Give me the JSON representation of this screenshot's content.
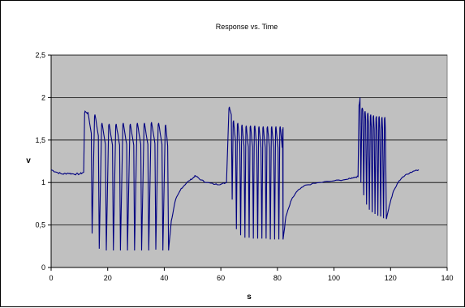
{
  "chart_data": {
    "type": "line",
    "title": "Response vs. Time",
    "xlabel": "s",
    "ylabel": "v",
    "xlim": [
      0,
      140
    ],
    "ylim": [
      0,
      2.5
    ],
    "x_ticks": [
      "0",
      "20",
      "40",
      "60",
      "80",
      "100",
      "120",
      "140"
    ],
    "y_ticks": [
      "0",
      "0,5",
      "1",
      "1,5",
      "2",
      "2,5"
    ],
    "grid": "horizontal",
    "plot_background": "#c0c0c0",
    "line_color": "#000080",
    "legend": "none",
    "series": [
      {
        "baseline": [
          [
            0,
            1.15
          ],
          [
            2,
            1.12
          ],
          [
            4,
            1.1
          ],
          [
            6,
            1.11
          ],
          [
            8,
            1.1
          ],
          [
            10,
            1.1
          ],
          [
            11.5,
            1.12
          ]
        ],
        "bursts": [
          {
            "peaks": [
              [
                12,
                1.84
              ],
              [
                13,
                1.83
              ],
              [
                15.5,
                1.8
              ],
              [
                18,
                1.7
              ],
              [
                20.5,
                1.69
              ],
              [
                23,
                1.69
              ],
              [
                25.5,
                1.7
              ],
              [
                28,
                1.69
              ],
              [
                30.5,
                1.7
              ],
              [
                33,
                1.7
              ],
              [
                35.5,
                1.71
              ],
              [
                38,
                1.7
              ],
              [
                40.5,
                1.68
              ]
            ],
            "troughs": [
              [
                14.5,
                0.4
              ],
              [
                17,
                0.22
              ],
              [
                19.5,
                0.2
              ],
              [
                22,
                0.2
              ],
              [
                24.5,
                0.2
              ],
              [
                27,
                0.2
              ],
              [
                29.5,
                0.2
              ],
              [
                32,
                0.2
              ],
              [
                34.5,
                0.2
              ],
              [
                37,
                0.21
              ],
              [
                39.5,
                0.2
              ],
              [
                41.5,
                0.2
              ]
            ]
          },
          {
            "peaks": [
              [
                63,
                1.89
              ],
              [
                64.5,
                1.73
              ],
              [
                66,
                1.7
              ],
              [
                67.5,
                1.68
              ],
              [
                69,
                1.67
              ],
              [
                70.5,
                1.67
              ],
              [
                72,
                1.67
              ],
              [
                73.5,
                1.66
              ],
              [
                75,
                1.66
              ],
              [
                76.5,
                1.66
              ],
              [
                78,
                1.66
              ],
              [
                79.5,
                1.66
              ],
              [
                81,
                1.66
              ],
              [
                82,
                1.65
              ]
            ],
            "troughs": [
              [
                64,
                0.8
              ],
              [
                65.5,
                0.45
              ],
              [
                67,
                0.38
              ],
              [
                68.5,
                0.35
              ],
              [
                70,
                0.35
              ],
              [
                71.5,
                0.34
              ],
              [
                73,
                0.34
              ],
              [
                74.5,
                0.34
              ],
              [
                76,
                0.34
              ],
              [
                77.5,
                0.33
              ],
              [
                79,
                0.33
              ],
              [
                80.5,
                0.33
              ],
              [
                82,
                0.33
              ]
            ]
          },
          {
            "peaks": [
              [
                109,
                1.93
              ],
              [
                110,
                1.88
              ],
              [
                111,
                1.84
              ],
              [
                112,
                1.82
              ],
              [
                113,
                1.8
              ],
              [
                114,
                1.79
              ],
              [
                115,
                1.78
              ],
              [
                116,
                1.78
              ],
              [
                117,
                1.77
              ],
              [
                118,
                1.77
              ]
            ],
            "troughs": [
              [
                109.5,
                1.0
              ],
              [
                110.5,
                0.85
              ],
              [
                111.5,
                0.74
              ],
              [
                112.5,
                0.68
              ],
              [
                113.5,
                0.65
              ],
              [
                114.5,
                0.63
              ],
              [
                115.5,
                0.61
              ],
              [
                116.5,
                0.6
              ],
              [
                117.5,
                0.58
              ],
              [
                118.5,
                0.57
              ]
            ]
          }
        ],
        "recoveries": [
          [
            [
              41.5,
              0.2
            ],
            [
              42.5,
              0.55
            ],
            [
              44,
              0.8
            ],
            [
              46,
              0.93
            ],
            [
              48,
              1.0
            ],
            [
              50,
              1.05
            ],
            [
              51,
              1.08
            ],
            [
              53,
              1.03
            ],
            [
              55,
              1.0
            ],
            [
              58,
              0.98
            ],
            [
              60,
              0.98
            ],
            [
              62,
              1.0
            ]
          ],
          [
            [
              82,
              0.33
            ],
            [
              83,
              0.6
            ],
            [
              85,
              0.8
            ],
            [
              87,
              0.9
            ],
            [
              90,
              0.97
            ],
            [
              95,
              1.0
            ],
            [
              100,
              1.02
            ],
            [
              105,
              1.04
            ],
            [
              107,
              1.06
            ],
            [
              108.5,
              1.07
            ]
          ],
          [
            [
              118.5,
              0.57
            ],
            [
              119.5,
              0.72
            ],
            [
              121,
              0.9
            ],
            [
              123,
              1.02
            ],
            [
              125,
              1.08
            ],
            [
              127,
              1.12
            ],
            [
              130,
              1.15
            ]
          ]
        ]
      }
    ]
  }
}
